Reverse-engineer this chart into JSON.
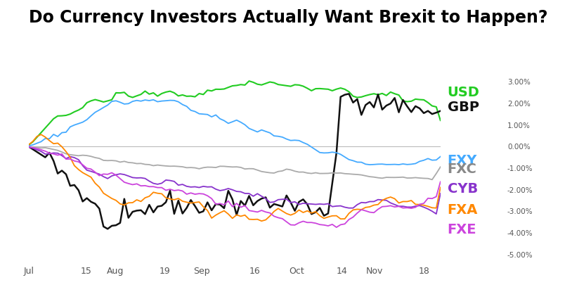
{
  "title": "Do Currency Investors Actually Want Brexit to Happen?",
  "title_fontsize": 17,
  "title_fontweight": "bold",
  "background_color": "#ffffff",
  "series": {
    "USD": {
      "color": "#22cc22",
      "linewidth": 1.5,
      "label_color": "#22cc22"
    },
    "GBP": {
      "color": "#111111",
      "linewidth": 1.8,
      "label_color": "#111111"
    },
    "FXY": {
      "color": "#44aaff",
      "linewidth": 1.3,
      "label_color": "#44aaff"
    },
    "FXC": {
      "color": "#aaaaaa",
      "linewidth": 1.3,
      "label_color": "#888888"
    },
    "CYB": {
      "color": "#8833cc",
      "linewidth": 1.3,
      "label_color": "#8833cc"
    },
    "FXA": {
      "color": "#ff8800",
      "linewidth": 1.3,
      "label_color": "#ff8800"
    },
    "FXE": {
      "color": "#cc44dd",
      "linewidth": 1.3,
      "label_color": "#cc44dd"
    }
  },
  "x_tick_labels": [
    "Jul",
    "15",
    "Aug",
    "19",
    "Sep",
    "16",
    "Oct",
    "14",
    "Nov",
    "18"
  ],
  "x_tick_positions": [
    0.0,
    0.14,
    0.21,
    0.33,
    0.42,
    0.55,
    0.65,
    0.76,
    0.84,
    0.96
  ],
  "y_ticks": [
    -5.0,
    -4.0,
    -3.0,
    -2.0,
    -1.0,
    0.0,
    1.0,
    2.0,
    3.0
  ],
  "ylim": [
    -5.4,
    3.6
  ],
  "n_points": 100,
  "legend_items": [
    [
      "USD",
      "#22cc22"
    ],
    [
      "GBP",
      "#111111"
    ],
    [
      "FXY",
      "#44aaff"
    ],
    [
      "FXC",
      "#888888"
    ],
    [
      "CYB",
      "#8833cc"
    ],
    [
      "FXA",
      "#ff8800"
    ],
    [
      "FXE",
      "#cc44dd"
    ]
  ],
  "legend_fontsize": 14
}
